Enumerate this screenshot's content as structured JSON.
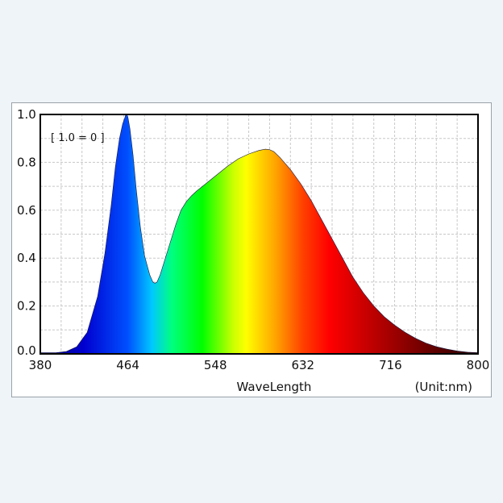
{
  "chart_data": {
    "type": "area",
    "title": "",
    "note": "[ 1.0 = 0 ]",
    "xlabel": "WaveLength",
    "unit_label": "(Unit:nm)",
    "ylabel": "",
    "xlim": [
      380,
      800
    ],
    "ylim": [
      0,
      1.0
    ],
    "x_ticks": [
      "380",
      "464",
      "548",
      "632",
      "716",
      "800"
    ],
    "y_ticks": [
      "0.0",
      "0.2",
      "0.4",
      "0.6",
      "0.8",
      "1.0"
    ],
    "grid": true,
    "fill": "wavelength-spectrum gradient",
    "series": [
      {
        "x": [
          380,
          395,
          405,
          415,
          425,
          435,
          442,
          448,
          452,
          456,
          459,
          461,
          462,
          463,
          464,
          466,
          469,
          472,
          476,
          480,
          485,
          488,
          490,
          492,
          495,
          500,
          505,
          510,
          515,
          520,
          525,
          530,
          540,
          550,
          560,
          570,
          580,
          590,
          596,
          600,
          604,
          610,
          620,
          630,
          640,
          650,
          660,
          670,
          680,
          690,
          700,
          710,
          720,
          730,
          740,
          750,
          760,
          770,
          780,
          790,
          800
        ],
        "y": [
          0.005,
          0.005,
          0.01,
          0.03,
          0.09,
          0.24,
          0.42,
          0.62,
          0.78,
          0.9,
          0.96,
          0.985,
          1.0,
          1.0,
          0.99,
          0.94,
          0.83,
          0.69,
          0.53,
          0.41,
          0.33,
          0.3,
          0.295,
          0.3,
          0.33,
          0.4,
          0.47,
          0.54,
          0.6,
          0.635,
          0.66,
          0.68,
          0.715,
          0.75,
          0.785,
          0.815,
          0.835,
          0.85,
          0.855,
          0.853,
          0.845,
          0.82,
          0.77,
          0.71,
          0.64,
          0.56,
          0.48,
          0.4,
          0.32,
          0.255,
          0.2,
          0.155,
          0.12,
          0.09,
          0.065,
          0.045,
          0.03,
          0.02,
          0.012,
          0.007,
          0.005
        ]
      }
    ]
  }
}
